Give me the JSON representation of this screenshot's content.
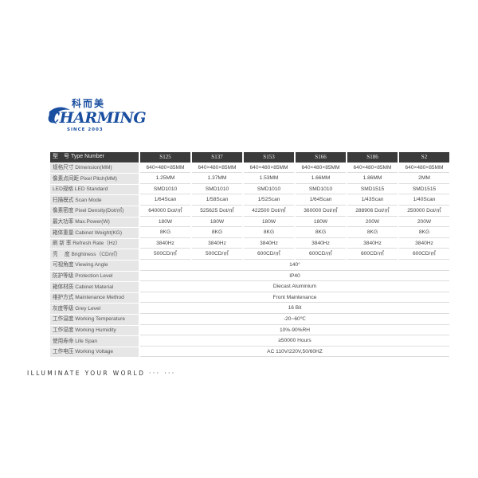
{
  "logo": {
    "cn": "科而美",
    "en": "CHARMING",
    "since": "SINCE 2003",
    "brand_color": "#1a4fa0"
  },
  "table": {
    "header_label": "型　号 Type Number",
    "models": [
      "S125",
      "S137",
      "S153",
      "S166",
      "S186",
      "S2"
    ],
    "rows": [
      {
        "label": "规格尺寸 Dimension(MM)",
        "values": [
          "640×480×85MM",
          "640×480×85MM",
          "640×480×85MM",
          "640×480×85MM",
          "640×480×85MM",
          "640×480×85MM"
        ]
      },
      {
        "label": "像素点间距 Pixel Pitch(MM)",
        "values": [
          "1.25MM",
          "1.37MM",
          "1.53MM",
          "1.66MM",
          "1.86MM",
          "2MM"
        ]
      },
      {
        "label": "LED规格 LED Standard",
        "values": [
          "SMD1010",
          "SMD1010",
          "SMD1010",
          "SMD1010",
          "SMD1515",
          "SMD1515"
        ]
      },
      {
        "label": "扫描模式 Scan Mode",
        "values": [
          "1/64Scan",
          "1/58Scan",
          "1/52Scan",
          "1/64Scan",
          "1/43Scan",
          "1/40Scan"
        ]
      },
      {
        "label": "像素密度 Pixel Density(Dot/㎡)",
        "values": [
          "640000 Dot/㎡",
          "525625 Dot/㎡",
          "422500 Dot/㎡",
          "360000 Dot/㎡",
          "288906 Dot/㎡",
          "250000 Dot/㎡"
        ]
      },
      {
        "label": "最大功率 Max.Power(W)",
        "values": [
          "180W",
          "180W",
          "180W",
          "180W",
          "200W",
          "200W"
        ]
      },
      {
        "label": "箱体重量 Cabinet Weight(KG)",
        "values": [
          "8KG",
          "8KG",
          "8KG",
          "8KG",
          "8KG",
          "8KG"
        ]
      },
      {
        "label": "刷 新 率 Refresh Rate（Hz）",
        "values": [
          "3840Hz",
          "3840Hz",
          "3840Hz",
          "3840Hz",
          "3840Hz",
          "3840Hz"
        ]
      },
      {
        "label": "亮　 度 Brightness（CD/㎡）",
        "values": [
          "500CD/㎡",
          "500CD/㎡",
          "600CD/㎡",
          "600CD/㎡",
          "600CD/㎡",
          "600CD/㎡"
        ]
      }
    ],
    "common_rows": [
      {
        "label": "可视角度 Viewing Angle",
        "value": "140°"
      },
      {
        "label": "防护等级 Protection Level",
        "value": "IP40"
      },
      {
        "label": "箱体材质 Cabinet Material",
        "value": "Diecast Aluminium"
      },
      {
        "label": "维护方式 Maintenance Method",
        "value": "Front Maintenance"
      },
      {
        "label": "灰度等级 Grey Level",
        "value": "16 Bit"
      },
      {
        "label": "工作温度 Working Temperature",
        "value": "-20~60℃"
      },
      {
        "label": "工作湿度 Working Humidity",
        "value": "10%-90%RH"
      },
      {
        "label": "使用寿命 Life Span",
        "value": "≥50000 Hours"
      },
      {
        "label": "工作电压 Working Voltage",
        "value": "AC 110V/220V,50/60HZ"
      }
    ]
  },
  "tagline": "ILLUMINATE YOUR WORLD ··· ···"
}
